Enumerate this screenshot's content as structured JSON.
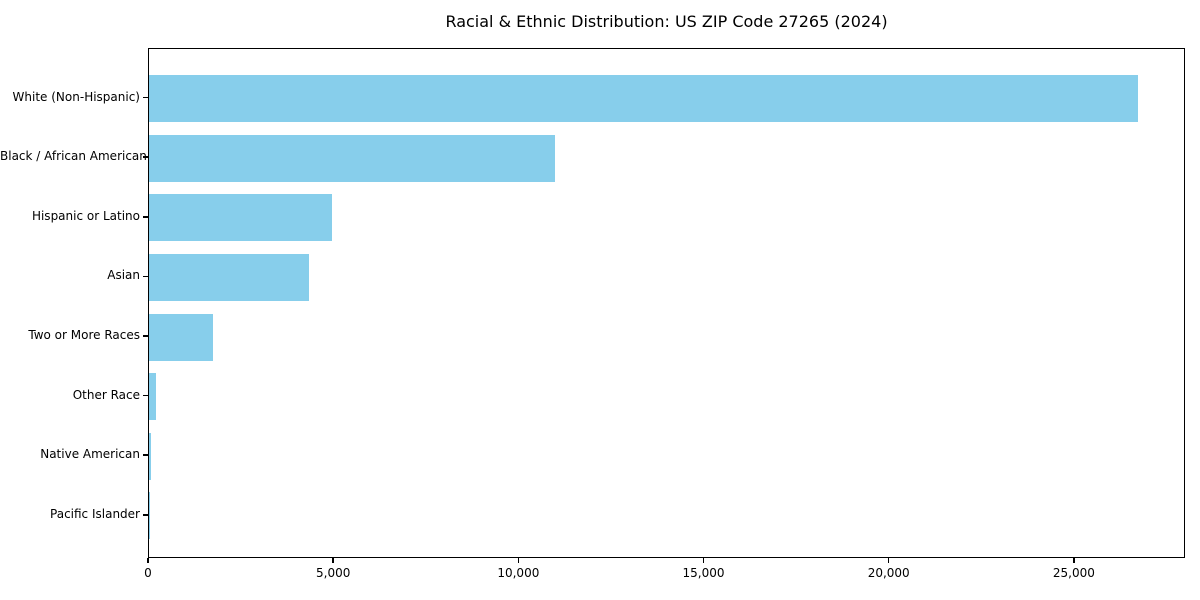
{
  "title": "Racial & Ethnic Distribution: US ZIP Code 27265 (2024)",
  "chart_data": {
    "type": "bar",
    "orientation": "horizontal",
    "title": "Racial & Ethnic Distribution: US ZIP Code 27265 (2024)",
    "xlabel": "",
    "ylabel": "",
    "categories": [
      "White (Non-Hispanic)",
      "Black / African American",
      "Hispanic or Latino",
      "Asian",
      "Two or More Races",
      "Other Race",
      "Native American",
      "Pacific Islander"
    ],
    "values": [
      26700,
      10950,
      4940,
      4310,
      1715,
      200,
      55,
      15
    ],
    "xlim": [
      0,
      28000
    ],
    "xticks": [
      0,
      5000,
      10000,
      15000,
      20000,
      25000
    ],
    "xtick_labels": [
      "0",
      "5,000",
      "10,000",
      "15,000",
      "20,000",
      "25,000"
    ],
    "bar_color": "#87CEEB",
    "axis_color": "#000000",
    "grid": false,
    "legend": null
  }
}
